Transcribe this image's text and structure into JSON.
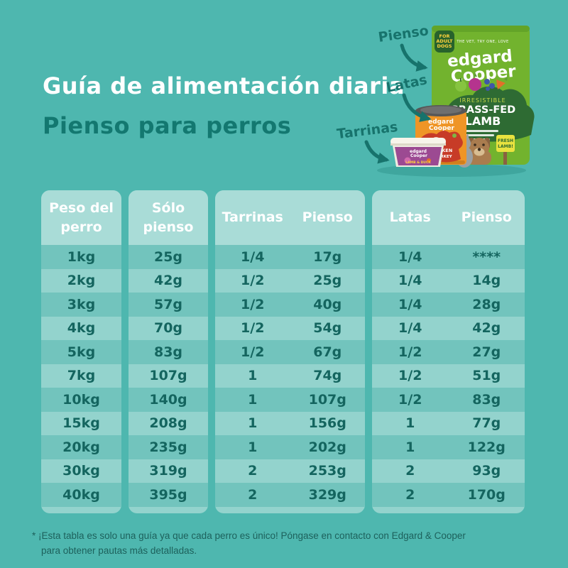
{
  "page": {
    "title": "Guía de alimentación diaria",
    "subtitle": "Pienso para perros"
  },
  "annotations": {
    "bag_label": "Pienso",
    "can_label": "Latas",
    "tub_label": "Tarrinas"
  },
  "products": {
    "bag": {
      "badge_lines": [
        "FOR",
        "ADULT",
        "DOGS"
      ],
      "tagline": "THE VET, TRY ONE, LOVE",
      "brand_line1": "edgard",
      "brand_line2": "Cooper",
      "claim": "IRRESISTIBLE",
      "flavor_line1": "GRASS-FED",
      "flavor_line2": "LAMB",
      "sign_line1": "FRESH",
      "sign_line2": "LAMB!"
    },
    "can": {
      "brand_line1": "edgard",
      "brand_line2": "Cooper",
      "flavor_line1": "CHICKEN",
      "flavor_line2": "& TURKEY"
    },
    "tub": {
      "brand_line1": "edgard",
      "brand_line2": "Cooper",
      "flavor": "LAMB & DUCK"
    }
  },
  "table": {
    "cards": [
      {
        "name": "peso-del-perro",
        "header_lines": [
          "Peso del",
          "perro"
        ],
        "columns": [
          [
            "1kg",
            "2kg",
            "3kg",
            "4kg",
            "5kg",
            "7kg",
            "10kg",
            "15kg",
            "20kg",
            "30kg",
            "40kg"
          ]
        ]
      },
      {
        "name": "solo-pienso",
        "header_lines": [
          "Sólo",
          "pienso"
        ],
        "columns": [
          [
            "25g",
            "42g",
            "57g",
            "70g",
            "83g",
            "107g",
            "140g",
            "208g",
            "235g",
            "319g",
            "395g"
          ]
        ]
      },
      {
        "name": "tarrinas-pienso",
        "header_lines": [
          "Tarrinas",
          "Pienso"
        ],
        "columns": [
          [
            "1/4",
            "1/2",
            "1/2",
            "1/2",
            "1/2",
            "1",
            "1",
            "1",
            "1",
            "2",
            "2"
          ],
          [
            "17g",
            "25g",
            "40g",
            "54g",
            "67g",
            "74g",
            "107g",
            "156g",
            "202g",
            "253g",
            "329g"
          ]
        ]
      },
      {
        "name": "latas-pienso",
        "header_lines": [
          "Latas",
          "Pienso"
        ],
        "columns": [
          [
            "1/4",
            "1/4",
            "1/4",
            "1/4",
            "1/2",
            "1/2",
            "1/2",
            "1",
            "1",
            "2",
            "2"
          ],
          [
            "****",
            "14g",
            "28g",
            "42g",
            "27g",
            "51g",
            "83g",
            "77g",
            "122g",
            "93g",
            "170g"
          ]
        ]
      }
    ]
  },
  "chart_data": {
    "type": "table",
    "title": "Guía de alimentación diaria — Pienso para perros",
    "columns": [
      "Peso del perro",
      "Sólo pienso",
      "Tarrinas",
      "Pienso (con tarrinas)",
      "Latas",
      "Pienso (con latas)"
    ],
    "rows": [
      [
        "1kg",
        "25g",
        "1/4",
        "17g",
        "1/4",
        "****"
      ],
      [
        "2kg",
        "42g",
        "1/2",
        "25g",
        "1/4",
        "14g"
      ],
      [
        "3kg",
        "57g",
        "1/2",
        "40g",
        "1/4",
        "28g"
      ],
      [
        "4kg",
        "70g",
        "1/2",
        "54g",
        "1/4",
        "42g"
      ],
      [
        "5kg",
        "83g",
        "1/2",
        "67g",
        "1/2",
        "27g"
      ],
      [
        "7kg",
        "107g",
        "1",
        "74g",
        "1/2",
        "51g"
      ],
      [
        "10kg",
        "140g",
        "1",
        "107g",
        "1/2",
        "83g"
      ],
      [
        "15kg",
        "208g",
        "1",
        "156g",
        "1",
        "77g"
      ],
      [
        "20kg",
        "235g",
        "1",
        "202g",
        "1",
        "122g"
      ],
      [
        "30kg",
        "319g",
        "2",
        "253g",
        "2",
        "93g"
      ],
      [
        "40kg",
        "395g",
        "2",
        "329g",
        "2",
        "170g"
      ]
    ]
  },
  "footnote": {
    "marker": "*",
    "line1": "¡Esta tabla es solo una guía ya que cada perro es único! Póngase en contacto con Edgard & Cooper",
    "line2": "para obtener pautas más detalladas."
  },
  "colors": {
    "background": "#4eb7af",
    "card": "#93d3cd",
    "card_header": "#a9dcd7",
    "row_stripe": "#72c4bd",
    "text_dark_teal": "#14655f",
    "title_white": "#ffffff",
    "subtitle_teal": "#137870",
    "annotation_teal": "#17736c",
    "bag_green": "#72b32e",
    "can_orange": "#ef9526",
    "tub_purple": "#9c4a92"
  }
}
